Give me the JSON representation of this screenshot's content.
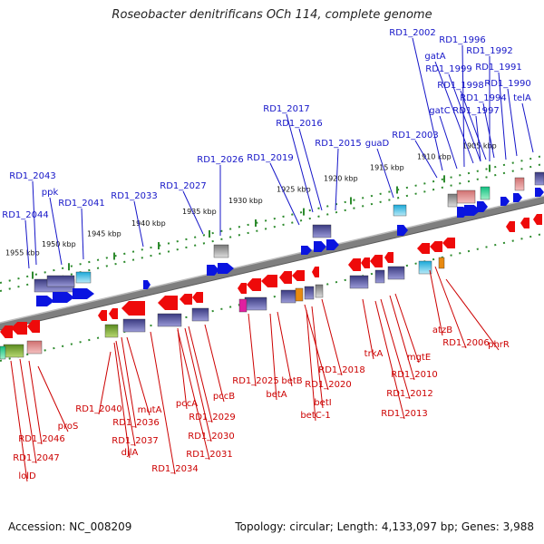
{
  "title": "Roseobacter denitrificans OCh 114, complete genome",
  "footer": {
    "accession": "Accession: NC_008209",
    "topology": "Topology: circular; Length: 4,133,097 bp; Genes: 3,988"
  },
  "colors": {
    "forward_label": "#1515c8",
    "reverse_label": "#cc0000",
    "backbone": "#7f7f7f",
    "tick": "#2e8b2e"
  },
  "scale_labels": [
    "1955 kbp",
    "1950 kbp",
    "1945 kbp",
    "1940 kbp",
    "1935 kbp",
    "1930 kbp",
    "1925 kbp",
    "1920 kbp",
    "1915 kbp",
    "1910 kbp",
    "1905 kbp"
  ],
  "forward_labels": [
    "RD1_2002",
    "RD1_1996",
    "gatA",
    "RD1_1992",
    "RD1_1999",
    "RD1_1991",
    "RD1_1998",
    "RD1_1990",
    "RD1_1994",
    "telA",
    "gatC",
    "RD1_1997",
    "RD1_2017",
    "RD1_2016",
    "RD1_2015",
    "guaD",
    "RD1_2003",
    "RD1_2026",
    "RD1_2019",
    "RD1_2027",
    "RD1_2033",
    "RD1_2043",
    "ppk",
    "RD1_2041",
    "RD1_2044"
  ],
  "reverse_labels": [
    "phrR",
    "atzB",
    "RD1_2006",
    "trkA",
    "mgtE",
    "RD1_2010",
    "RD1_2012",
    "RD1_2013",
    "RD1_2018",
    "RD1_2025",
    "betB",
    "RD1_2020",
    "betA",
    "betI",
    "betC-1",
    "pccB",
    "pccA",
    "RD1_2029",
    "RD1_2030",
    "RD1_2031",
    "RD1_2034",
    "mutA",
    "RD1_2040",
    "RD1_2036",
    "RD1_2037",
    "djlA",
    "proS",
    "RD1_2046",
    "RD1_2047",
    "lolD"
  ]
}
